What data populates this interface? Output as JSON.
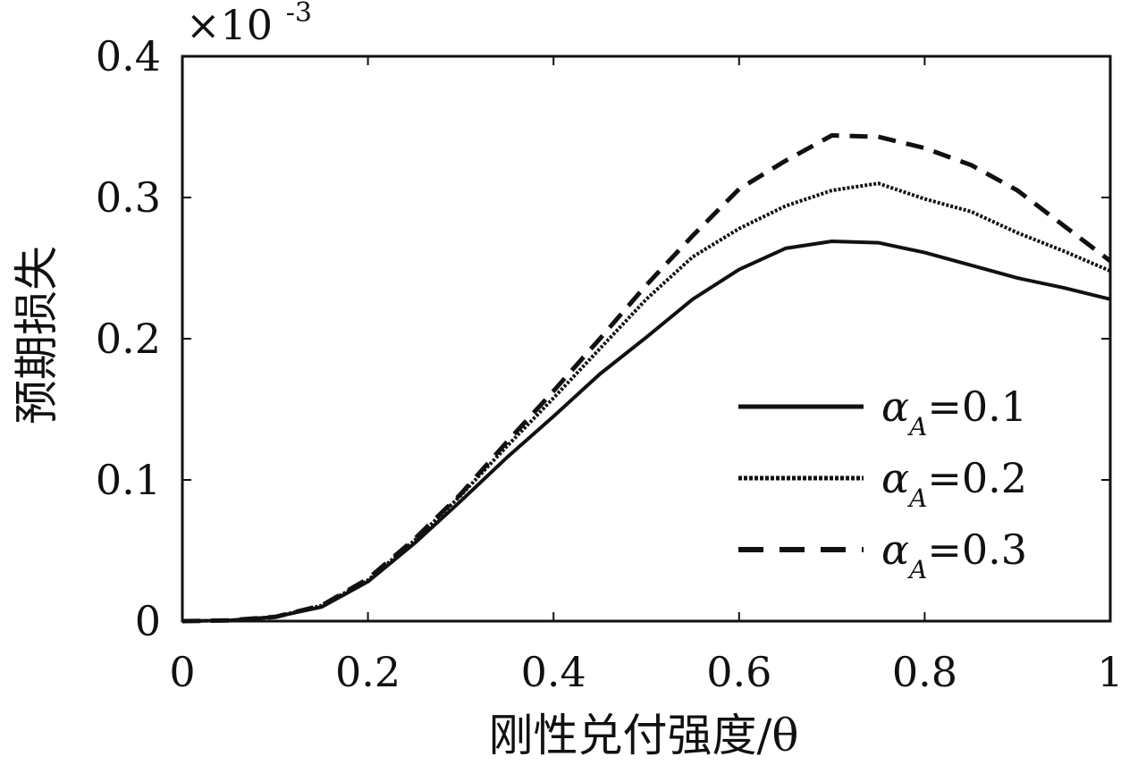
{
  "chart_data": {
    "type": "line",
    "title": "",
    "xlabel": "刚性兑付强度/θ",
    "ylabel": "预期损失",
    "y_multiplier": "×10",
    "y_multiplier_exponent": "-3",
    "xlim": [
      0,
      1
    ],
    "ylim": [
      0,
      0.4
    ],
    "x_ticks": [
      "0",
      "0.2",
      "0.4",
      "0.6",
      "0.8",
      "1"
    ],
    "y_ticks": [
      "0",
      "0.1",
      "0.2",
      "0.3",
      "0.4"
    ],
    "grid": false,
    "legend_position": "right",
    "x": [
      0,
      0.05,
      0.1,
      0.15,
      0.2,
      0.25,
      0.3,
      0.35,
      0.4,
      0.45,
      0.5,
      0.55,
      0.6,
      0.65,
      0.7,
      0.75,
      0.8,
      0.85,
      0.9,
      0.95,
      1.0
    ],
    "series": [
      {
        "name": "α_A=0.1",
        "label_main": "α",
        "label_sub": "A",
        "label_value": "=0.1",
        "style": "solid",
        "values": [
          0,
          0.0005,
          0.003,
          0.01,
          0.028,
          0.055,
          0.085,
          0.116,
          0.145,
          0.175,
          0.201,
          0.228,
          0.249,
          0.264,
          0.269,
          0.268,
          0.261,
          0.252,
          0.243,
          0.236,
          0.228
        ]
      },
      {
        "name": "α_A=0.2",
        "label_main": "α",
        "label_sub": "A",
        "label_value": "=0.2",
        "style": "dotted",
        "values": [
          0,
          0.0005,
          0.003,
          0.011,
          0.029,
          0.057,
          0.089,
          0.124,
          0.158,
          0.193,
          0.228,
          0.258,
          0.278,
          0.294,
          0.305,
          0.31,
          0.299,
          0.29,
          0.275,
          0.262,
          0.248
        ]
      },
      {
        "name": "α_A=0.3",
        "label_main": "α",
        "label_sub": "A",
        "label_value": "=0.3",
        "style": "dashed",
        "values": [
          0,
          0.0005,
          0.003,
          0.011,
          0.03,
          0.058,
          0.09,
          0.127,
          0.163,
          0.2,
          0.238,
          0.273,
          0.306,
          0.326,
          0.344,
          0.343,
          0.335,
          0.323,
          0.305,
          0.28,
          0.255
        ]
      }
    ]
  }
}
